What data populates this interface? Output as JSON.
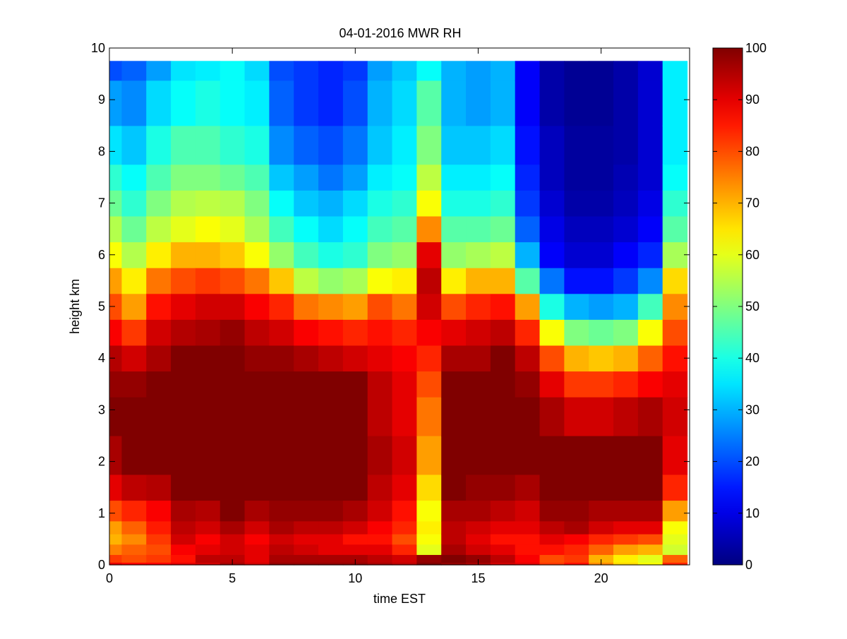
{
  "chart_data": {
    "type": "heatmap",
    "title": "04-01-2016 MWR RH",
    "xlabel": "time EST",
    "ylabel": "height km",
    "xlim": [
      0,
      23.6
    ],
    "ylim": [
      0,
      10
    ],
    "x_ticks": [
      0,
      5,
      10,
      15,
      20
    ],
    "y_ticks": [
      0,
      1,
      2,
      3,
      4,
      5,
      6,
      7,
      8,
      9,
      10
    ],
    "x_tick_labels": [
      "0",
      "5",
      "10",
      "15",
      "20"
    ],
    "y_tick_labels": [
      "0",
      "1",
      "2",
      "3",
      "4",
      "5",
      "6",
      "7",
      "8",
      "9",
      "10"
    ],
    "colorbar": {
      "colormap": "jet",
      "range": [
        0,
        100
      ],
      "ticks": [
        0,
        10,
        20,
        30,
        40,
        50,
        60,
        70,
        80,
        90,
        100
      ],
      "tick_labels": [
        "0",
        "10",
        "20",
        "30",
        "40",
        "50",
        "60",
        "70",
        "80",
        "90",
        "100"
      ]
    },
    "grid": false,
    "time_hours": [
      0,
      1,
      2,
      3,
      4,
      5,
      6,
      7,
      8,
      9,
      10,
      11,
      12,
      13,
      14,
      15,
      16,
      17,
      18,
      19,
      20,
      21,
      22,
      23
    ],
    "height_km": [
      0,
      0.1,
      0.3,
      0.5,
      0.7,
      1.0,
      1.5,
      2.0,
      3.0,
      3.5,
      4.0,
      4.5,
      5.0,
      5.5,
      6.0,
      6.5,
      7.0,
      7.5,
      8.0,
      9.0,
      9.75
    ],
    "values": [
      [
        90,
        82,
        75,
        70,
        72,
        80,
        90,
        96,
        100,
        98,
        95,
        88,
        80,
        72,
        62,
        55,
        48,
        42,
        35,
        28,
        20
      ],
      [
        88,
        80,
        78,
        74,
        78,
        84,
        94,
        100,
        100,
        98,
        92,
        82,
        72,
        64,
        55,
        48,
        42,
        38,
        32,
        26,
        22
      ],
      [
        88,
        82,
        80,
        82,
        85,
        88,
        95,
        100,
        100,
        100,
        96,
        92,
        86,
        76,
        64,
        56,
        50,
        45,
        40,
        34,
        28
      ],
      [
        90,
        86,
        88,
        92,
        94,
        96,
        100,
        100,
        100,
        100,
        100,
        95,
        90,
        80,
        70,
        60,
        55,
        50,
        45,
        38,
        35
      ],
      [
        92,
        94,
        90,
        88,
        92,
        95,
        100,
        100,
        100,
        100,
        100,
        96,
        92,
        82,
        70,
        62,
        56,
        50,
        45,
        40,
        36
      ],
      [
        96,
        94,
        92,
        92,
        96,
        100,
        100,
        100,
        100,
        100,
        100,
        98,
        92,
        80,
        68,
        60,
        55,
        48,
        42,
        38,
        38
      ],
      [
        92,
        90,
        90,
        88,
        92,
        96,
        100,
        100,
        100,
        100,
        98,
        94,
        88,
        76,
        62,
        54,
        50,
        45,
        40,
        36,
        34
      ],
      [
        98,
        96,
        94,
        92,
        96,
        98,
        100,
        100,
        100,
        100,
        98,
        92,
        84,
        68,
        52,
        44,
        38,
        32,
        26,
        22,
        20
      ],
      [
        98,
        96,
        92,
        90,
        94,
        98,
        100,
        100,
        100,
        100,
        96,
        88,
        76,
        56,
        44,
        38,
        32,
        28,
        22,
        18,
        18
      ],
      [
        98,
        96,
        90,
        90,
        94,
        98,
        100,
        100,
        100,
        100,
        94,
        86,
        74,
        52,
        40,
        34,
        30,
        24,
        20,
        16,
        16
      ],
      [
        98,
        96,
        90,
        86,
        92,
        96,
        100,
        100,
        100,
        100,
        92,
        84,
        72,
        54,
        42,
        38,
        34,
        28,
        24,
        20,
        18
      ],
      [
        96,
        94,
        90,
        86,
        88,
        92,
        94,
        96,
        94,
        94,
        90,
        86,
        80,
        62,
        50,
        44,
        40,
        36,
        32,
        30,
        28
      ],
      [
        94,
        92,
        84,
        80,
        84,
        86,
        90,
        92,
        90,
        90,
        88,
        84,
        76,
        64,
        52,
        46,
        42,
        38,
        36,
        34,
        32
      ],
      [
        100,
        98,
        60,
        62,
        64,
        62,
        66,
        72,
        76,
        80,
        84,
        88,
        92,
        94,
        90,
        74,
        62,
        56,
        50,
        46,
        38
      ],
      [
        98,
        100,
        96,
        94,
        94,
        96,
        100,
        100,
        100,
        100,
        96,
        90,
        80,
        64,
        52,
        46,
        40,
        36,
        32,
        30,
        30
      ],
      [
        96,
        98,
        92,
        90,
        92,
        96,
        98,
        100,
        100,
        100,
        96,
        92,
        84,
        70,
        54,
        46,
        40,
        36,
        32,
        28,
        28
      ],
      [
        92,
        94,
        90,
        86,
        90,
        94,
        98,
        100,
        100,
        100,
        100,
        94,
        86,
        70,
        56,
        48,
        42,
        38,
        34,
        30,
        30
      ],
      [
        90,
        88,
        86,
        86,
        90,
        92,
        96,
        100,
        100,
        98,
        94,
        84,
        72,
        46,
        30,
        22,
        18,
        16,
        14,
        12,
        12
      ],
      [
        82,
        80,
        86,
        90,
        94,
        98,
        100,
        100,
        96,
        90,
        80,
        62,
        40,
        24,
        12,
        10,
        8,
        6,
        6,
        4,
        4
      ],
      [
        86,
        82,
        84,
        88,
        96,
        98,
        100,
        100,
        92,
        82,
        70,
        50,
        30,
        14,
        8,
        6,
        4,
        3,
        3,
        2,
        2
      ],
      [
        74,
        70,
        78,
        84,
        92,
        96,
        100,
        100,
        92,
        82,
        68,
        48,
        28,
        14,
        8,
        6,
        4,
        3,
        3,
        2,
        2
      ],
      [
        66,
        64,
        72,
        82,
        90,
        96,
        100,
        100,
        94,
        84,
        70,
        50,
        30,
        18,
        12,
        8,
        6,
        5,
        4,
        4,
        4
      ],
      [
        62,
        60,
        70,
        80,
        90,
        96,
        100,
        100,
        96,
        88,
        78,
        62,
        44,
        26,
        16,
        12,
        10,
        8,
        8,
        8,
        8
      ],
      [
        84,
        78,
        58,
        60,
        62,
        72,
        84,
        90,
        92,
        90,
        86,
        80,
        74,
        66,
        54,
        46,
        42,
        38,
        36,
        36,
        36
      ]
    ]
  }
}
